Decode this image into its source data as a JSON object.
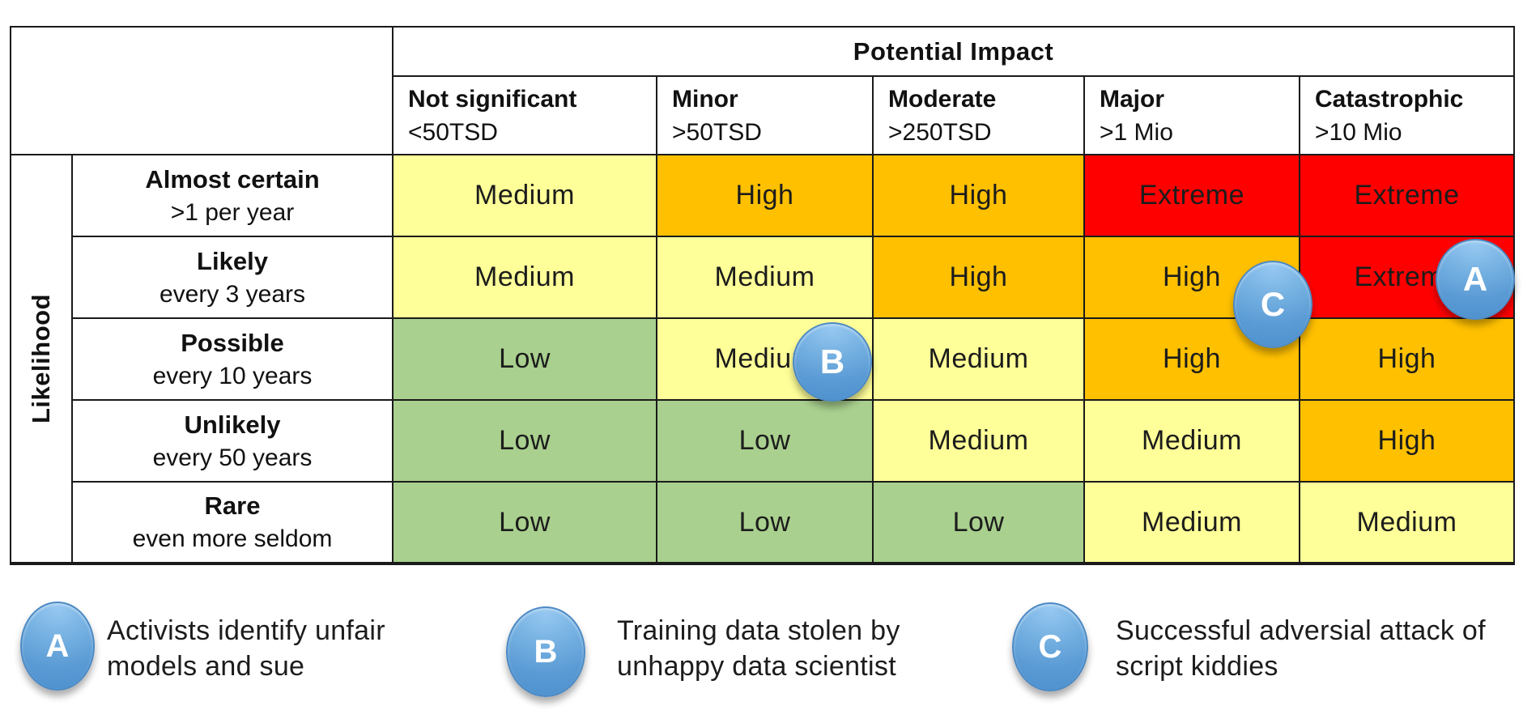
{
  "table": {
    "impact_header": "Potential Impact",
    "likelihood_header": "Likelihood",
    "columns": [
      {
        "title": "Not significant",
        "threshold": "<50TSD"
      },
      {
        "title": "Minor",
        "threshold": ">50TSD"
      },
      {
        "title": "Moderate",
        "threshold": ">250TSD"
      },
      {
        "title": "Major",
        "threshold": ">1 Mio"
      },
      {
        "title": "Catastrophic",
        "threshold": ">10 Mio"
      }
    ],
    "rows": [
      {
        "title": "Almost certain",
        "frequency": ">1 per year",
        "cells": [
          "Medium",
          "High",
          "High",
          "Extreme",
          "Extreme"
        ]
      },
      {
        "title": "Likely",
        "frequency": "every 3 years",
        "cells": [
          "Medium",
          "Medium",
          "High",
          "High",
          "Extreme"
        ]
      },
      {
        "title": "Possible",
        "frequency": "every 10 years",
        "cells": [
          "Low",
          "Medium",
          "Medium",
          "High",
          "High"
        ]
      },
      {
        "title": "Unlikely",
        "frequency": "every 50 years",
        "cells": [
          "Low",
          "Low",
          "Medium",
          "Medium",
          "High"
        ]
      },
      {
        "title": "Rare",
        "frequency": "even more seldom",
        "cells": [
          "Low",
          "Low",
          "Low",
          "Medium",
          "Medium"
        ]
      }
    ],
    "level_colors": {
      "Low": "#A9D08E",
      "Medium": "#FFFF99",
      "High": "#FFC000",
      "Extreme": "#FF0000"
    }
  },
  "markers": [
    {
      "id": "A",
      "cell": "Likely / Catastrophic (Extreme)"
    },
    {
      "id": "B",
      "cell": "Possible / Minor (Medium)"
    },
    {
      "id": "C",
      "cell": "Likely / Major (High)"
    }
  ],
  "marker_color": "#5B9BD5",
  "legend": [
    {
      "id": "A",
      "label": "Activists identify unfair models and sue"
    },
    {
      "id": "B",
      "label": "Training data stolen by unhappy data scientist"
    },
    {
      "id": "C",
      "label": "Successful adversial attack of script kiddies"
    }
  ]
}
